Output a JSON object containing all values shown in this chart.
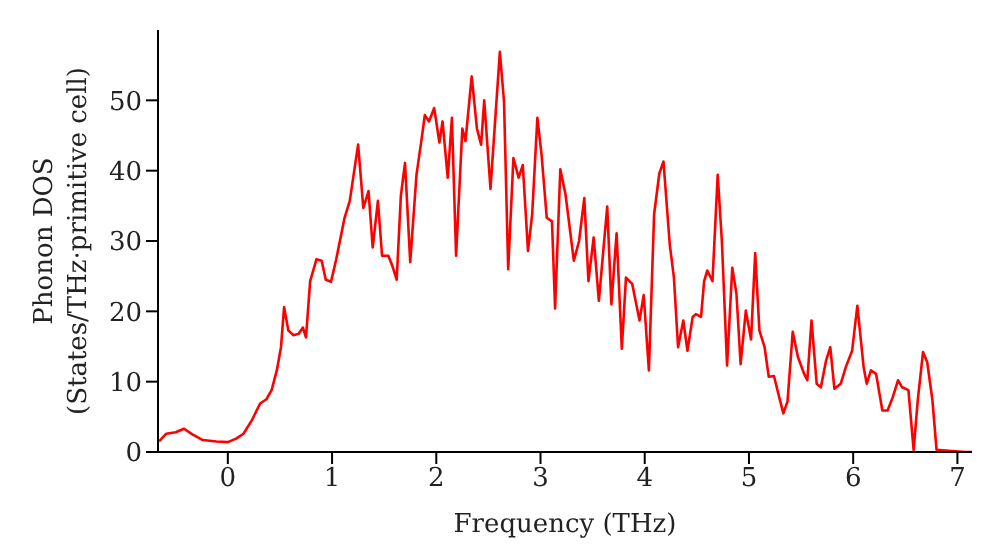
{
  "chart_data": {
    "type": "line",
    "xlabel": "Frequency (THz)",
    "ylabel": "Phonon DOS\n(States/THz·primitive cell)",
    "xlim": [
      -0.67,
      7.14
    ],
    "xticks": [
      0,
      1,
      2,
      3,
      4,
      5,
      6,
      7
    ],
    "ylim": [
      0,
      60
    ],
    "yticks": [
      0,
      10,
      20,
      30,
      40,
      50
    ],
    "grid": false,
    "legend": false,
    "marker": "none",
    "line_style": "solid",
    "x": [
      -0.66,
      -0.59,
      -0.5,
      -0.42,
      -0.34,
      -0.24,
      -0.11,
      0,
      0.08,
      0.15,
      0.23,
      0.31,
      0.37,
      0.42,
      0.47,
      0.51,
      0.54,
      0.58,
      0.63,
      0.68,
      0.72,
      0.75,
      0.79,
      0.85,
      0.9,
      0.94,
      0.99,
      1.04,
      1.12,
      1.17,
      1.25,
      1.3,
      1.35,
      1.39,
      1.44,
      1.48,
      1.54,
      1.58,
      1.62,
      1.66,
      1.7,
      1.75,
      1.81,
      1.86,
      1.89,
      1.93,
      1.98,
      2.03,
      2.06,
      2.11,
      2.15,
      2.19,
      2.25,
      2.28,
      2.34,
      2.39,
      2.43,
      2.46,
      2.52,
      2.61,
      2.65,
      2.69,
      2.74,
      2.79,
      2.83,
      2.88,
      2.92,
      2.97,
      3.01,
      3.06,
      3.11,
      3.14,
      3.19,
      3.24,
      3.32,
      3.37,
      3.42,
      3.46,
      3.51,
      3.56,
      3.64,
      3.68,
      3.73,
      3.78,
      3.82,
      3.88,
      3.95,
      3.99,
      4.04,
      4.09,
      4.14,
      4.18,
      4.24,
      4.28,
      4.32,
      4.37,
      4.41,
      4.46,
      4.49,
      4.54,
      4.57,
      4.6,
      4.65,
      4.7,
      4.74,
      4.79,
      4.84,
      4.88,
      4.92,
      4.97,
      5.02,
      5.06,
      5.1,
      5.15,
      5.19,
      5.24,
      5.29,
      5.33,
      5.37,
      5.42,
      5.47,
      5.53,
      5.56,
      5.6,
      5.65,
      5.69,
      5.74,
      5.78,
      5.82,
      5.88,
      5.93,
      5.99,
      6.04,
      6.1,
      6.13,
      6.17,
      6.22,
      6.28,
      6.33,
      6.38,
      6.43,
      6.47,
      6.53,
      6.58,
      6.62,
      6.67,
      6.71,
      6.76,
      6.8,
      7.07,
      7.14
    ],
    "series": [
      {
        "color": "#ff0000",
        "values": [
          1.5,
          2.6,
          2.8,
          3.3,
          2.5,
          1.7,
          1.5,
          1.4,
          1.9,
          2.6,
          4.5,
          6.9,
          7.5,
          8.8,
          11.6,
          14.9,
          20.6,
          17.3,
          16.6,
          16.8,
          17.7,
          16.3,
          24.3,
          27.4,
          27.2,
          24.5,
          24.2,
          27.4,
          33.3,
          35.7,
          43.7,
          34.7,
          37.1,
          29.1,
          35.7,
          27.9,
          27.9,
          26.4,
          24.5,
          36.4,
          41.1,
          27,
          39.4,
          44.6,
          47.9,
          47,
          48.9,
          44,
          47,
          39,
          47.5,
          27.9,
          46,
          44.2,
          53.4,
          46,
          43.7,
          50,
          37.4,
          56.9,
          49.8,
          26,
          41.8,
          39,
          40.8,
          28.6,
          33.8,
          47.5,
          42.3,
          33.3,
          32.8,
          20.4,
          40.2,
          36.6,
          27.2,
          30,
          36.1,
          24.3,
          30.5,
          21.5,
          34.9,
          21,
          31.1,
          14.7,
          24.8,
          23.9,
          18.7,
          22.3,
          11.6,
          33.8,
          39.6,
          41.3,
          29.5,
          24.8,
          14.9,
          18.7,
          14.4,
          19.2,
          19.6,
          19.2,
          24.3,
          25.8,
          24.3,
          39.4,
          30,
          12.3,
          26.2,
          22.5,
          12.5,
          20.1,
          16,
          28.3,
          17.3,
          14.9,
          10.7,
          10.8,
          7.8,
          5.5,
          7.2,
          17.1,
          13.5,
          11.1,
          10.2,
          18.7,
          9.7,
          9.2,
          13,
          14.9,
          9,
          9.7,
          12.1,
          14.4,
          20.8,
          12.1,
          9.7,
          11.6,
          11.1,
          5.9,
          5.9,
          7.8,
          10.2,
          9.2,
          8.8,
          0.3,
          7.4,
          14.2,
          12.8,
          7.4,
          0.3,
          0,
          0
        ]
      }
    ]
  }
}
